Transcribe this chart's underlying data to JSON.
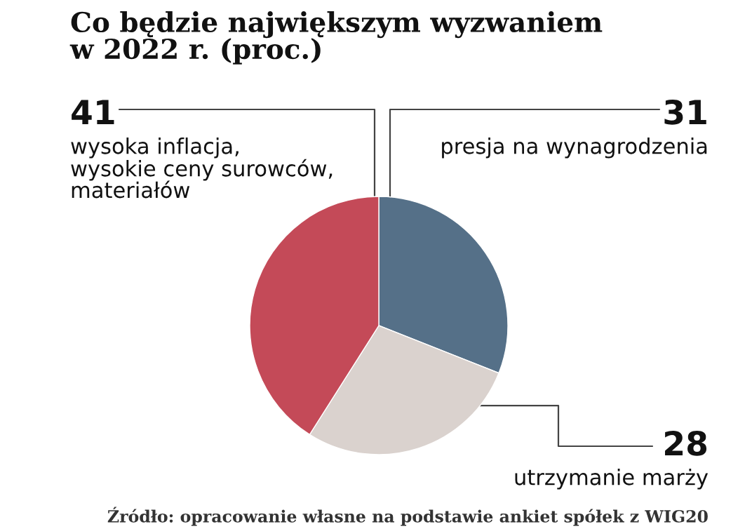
{
  "chart_data": {
    "type": "pie",
    "title": "Co będzie największym wyzwaniem\nw 2022 r. (proc.)",
    "categories": [
      "presja na wynagrodzenia",
      "utrzymanie marży",
      "wysoka inflacja,\nwysokie ceny surowców,\nmateriałów"
    ],
    "values": [
      31,
      28,
      41
    ],
    "colors": [
      "#557088",
      "#dad2ce",
      "#c44a58"
    ],
    "data_labels": true,
    "annotations": [
      "Źródło: opracowanie własne na podstawie ankiet spółek z WIG20"
    ]
  }
}
